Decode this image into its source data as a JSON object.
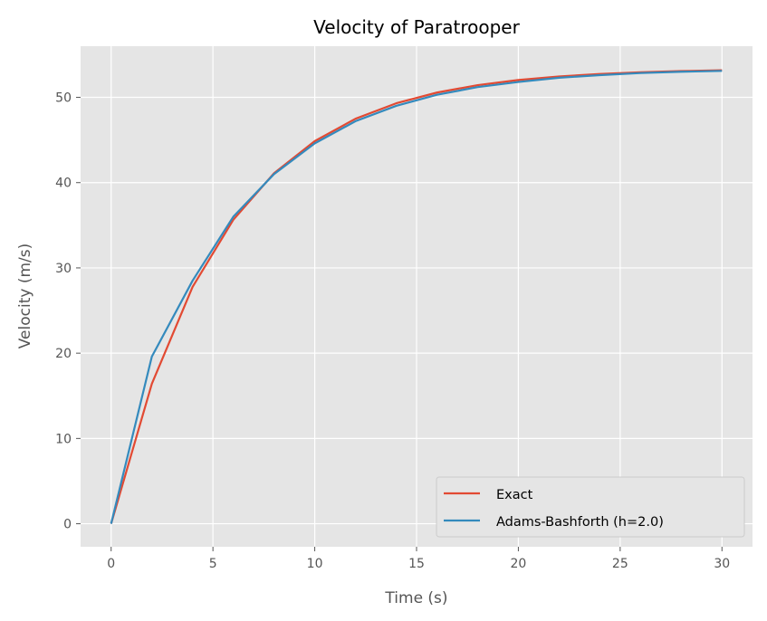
{
  "chart_data": {
    "type": "line",
    "title": "Velocity of Paratrooper",
    "xlabel": "Time (s)",
    "ylabel": "Velocity (m/s)",
    "xlim": [
      -1.5,
      31.5
    ],
    "ylim": [
      -2.7,
      56.0
    ],
    "xticks": [
      0,
      5,
      10,
      15,
      20,
      25,
      30
    ],
    "yticks": [
      0,
      10,
      20,
      30,
      40,
      50
    ],
    "grid": true,
    "legend_position": "bottom-right",
    "x": [
      0,
      2,
      4,
      6,
      8,
      10,
      12,
      14,
      16,
      18,
      20,
      22,
      24,
      26,
      28,
      30
    ],
    "series": [
      {
        "name": "Exact",
        "color": "#E24A33",
        "values": [
          0,
          16.41,
          27.77,
          35.64,
          41.1,
          44.87,
          47.49,
          49.3,
          50.56,
          51.43,
          52.03,
          52.45,
          52.74,
          52.94,
          53.08,
          53.17
        ]
      },
      {
        "name": "Adams-Bashforth (h=2.0)",
        "color": "#348ABD",
        "values": [
          0,
          19.6,
          28.5,
          36.0,
          41.0,
          44.6,
          47.2,
          49.0,
          50.3,
          51.2,
          51.8,
          52.3,
          52.6,
          52.85,
          53.0,
          53.1
        ]
      }
    ]
  }
}
